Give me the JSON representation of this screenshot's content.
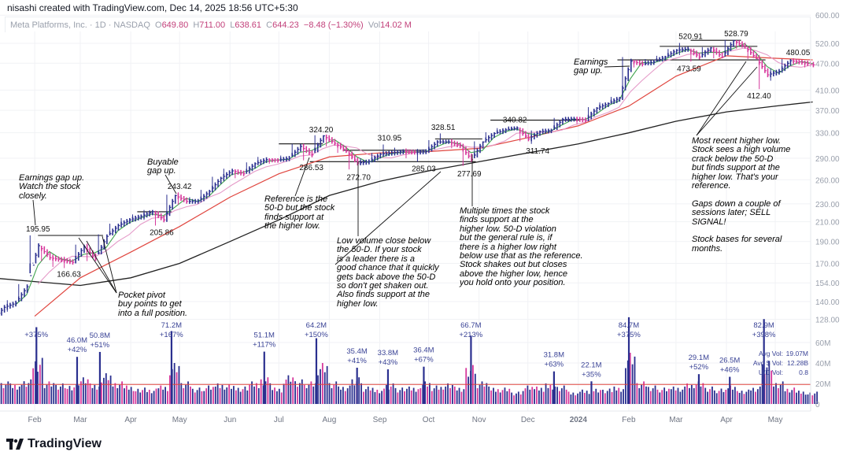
{
  "credit": "nisashi created with TradingView.com, Dec 14, 2025 18:56 UTC+5:30",
  "legend": {
    "symbol": "Meta Platforms, Inc. · 1D · NASDAQ",
    "o_label": "O",
    "o": "649.80",
    "h_label": "H",
    "h": "711.00",
    "l_label": "L",
    "l": "638.61",
    "c_label": "C",
    "c": "644.23",
    "change": "−8.48 (−1.30%)",
    "vol_label": "Vol",
    "vol": "14.02 M"
  },
  "stats": {
    "avg_vol_label": "Avg Vol:",
    "avg_vol": "19.07M",
    "avg_dollar_vol_label": "Avg $ Vol:",
    "avg_dollar_vol": "12.28B",
    "ud_label": "U/D Vol:",
    "ud": "0.8"
  },
  "logo": "TradingView",
  "colors": {
    "up": "#2a2f8f",
    "down": "#d6379b",
    "ma10": "#3fa34d",
    "ma21": "#e59ac8",
    "ma50": "#e0463f",
    "ma200": "#222222",
    "vol_ma": "#e0463f",
    "label": "#3a4396"
  },
  "chart_data": {
    "type": "ohlc",
    "y_scale": "log",
    "price_ticks": [
      "600.00",
      "520.00",
      "470.00",
      "410.00",
      "370.00",
      "330.00",
      "290.00",
      "260.00",
      "230.00",
      "210.00",
      "190.00",
      "170.00",
      "154.00",
      "140.00",
      "128.00"
    ],
    "volume_ticks": [
      "60M",
      "40M",
      "20M",
      "0"
    ],
    "time_ticks": [
      {
        "label": "Feb",
        "date": "2023-02-01"
      },
      {
        "label": "Mar",
        "date": "2023-03-01"
      },
      {
        "label": "Apr",
        "date": "2023-04-01"
      },
      {
        "label": "May",
        "date": "2023-05-01"
      },
      {
        "label": "Jun",
        "date": "2023-06-01"
      },
      {
        "label": "Jul",
        "date": "2023-07-01"
      },
      {
        "label": "Aug",
        "date": "2023-08-01"
      },
      {
        "label": "Sep",
        "date": "2023-09-01"
      },
      {
        "label": "Oct",
        "date": "2023-10-01"
      },
      {
        "label": "Nov",
        "date": "2023-11-01"
      },
      {
        "label": "Dec",
        "date": "2023-12-01"
      },
      {
        "label": "2024",
        "date": "2024-01-01"
      },
      {
        "label": "Feb",
        "date": "2024-02-01"
      },
      {
        "label": "Mar",
        "date": "2024-03-01"
      },
      {
        "label": "Apr",
        "date": "2024-04-01"
      },
      {
        "label": "May",
        "date": "2024-05-01"
      }
    ],
    "bars_columns": [
      "date",
      "low",
      "high",
      "close",
      "volume_M"
    ],
    "bars": [
      [
        "2023-01-13",
        128,
        138,
        136,
        22
      ],
      [
        "2023-01-20",
        133,
        141,
        139,
        20
      ],
      [
        "2023-01-27",
        140,
        153,
        151,
        24
      ],
      [
        "2023-02-03",
        170,
        196,
        186,
        45
      ],
      [
        "2023-02-10",
        172,
        186,
        175,
        22
      ],
      [
        "2023-02-17",
        167,
        178,
        173,
        20
      ],
      [
        "2023-02-24",
        166,
        176,
        171,
        19
      ],
      [
        "2023-03-03",
        170,
        187,
        185,
        26
      ],
      [
        "2023-03-10",
        172,
        188,
        174,
        20
      ],
      [
        "2023-03-17",
        178,
        197,
        195,
        30
      ],
      [
        "2023-03-24",
        196,
        208,
        206,
        22
      ],
      [
        "2023-03-31",
        204,
        214,
        212,
        18
      ],
      [
        "2023-04-07",
        210,
        218,
        216,
        16
      ],
      [
        "2023-04-14",
        212,
        223,
        221,
        15
      ],
      [
        "2023-04-21",
        206,
        222,
        212,
        18
      ],
      [
        "2023-04-28",
        210,
        241,
        240,
        40
      ],
      [
        "2023-05-05",
        229,
        244,
        233,
        22
      ],
      [
        "2023-05-12",
        230,
        238,
        233,
        16
      ],
      [
        "2023-05-19",
        232,
        247,
        245,
        18
      ],
      [
        "2023-05-26",
        244,
        264,
        262,
        20
      ],
      [
        "2023-06-02",
        258,
        275,
        272,
        19
      ],
      [
        "2023-06-09",
        262,
        274,
        268,
        17
      ],
      [
        "2023-06-16",
        268,
        284,
        282,
        22
      ],
      [
        "2023-06-23",
        280,
        292,
        288,
        26
      ],
      [
        "2023-06-30",
        282,
        290,
        287,
        16
      ],
      [
        "2023-07-07",
        285,
        294,
        290,
        28
      ],
      [
        "2023-07-14",
        292,
        312,
        308,
        24
      ],
      [
        "2023-07-21",
        287,
        312,
        295,
        22
      ],
      [
        "2023-07-28",
        298,
        326,
        325,
        40
      ],
      [
        "2023-08-04",
        308,
        327,
        313,
        22
      ],
      [
        "2023-08-11",
        298,
        314,
        301,
        18
      ],
      [
        "2023-08-18",
        274,
        302,
        283,
        26
      ],
      [
        "2023-08-25",
        280,
        290,
        285,
        17
      ],
      [
        "2023-09-01",
        284,
        298,
        296,
        15
      ],
      [
        "2023-09-08",
        292,
        311,
        298,
        20
      ],
      [
        "2023-09-15",
        294,
        306,
        300,
        16
      ],
      [
        "2023-09-22",
        290,
        305,
        299,
        17
      ],
      [
        "2023-09-29",
        285,
        304,
        300,
        22
      ],
      [
        "2023-10-06",
        298,
        318,
        315,
        18
      ],
      [
        "2023-10-13",
        312,
        329,
        315,
        20
      ],
      [
        "2023-10-20",
        305,
        320,
        309,
        17
      ],
      [
        "2023-10-27",
        279,
        312,
        288,
        38
      ],
      [
        "2023-11-03",
        290,
        316,
        315,
        22
      ],
      [
        "2023-11-10",
        314,
        331,
        329,
        17
      ],
      [
        "2023-11-17",
        328,
        338,
        335,
        16
      ],
      [
        "2023-11-24",
        334,
        341,
        338,
        12
      ],
      [
        "2023-12-01",
        316,
        339,
        320,
        18
      ],
      [
        "2023-12-08",
        312,
        334,
        332,
        17
      ],
      [
        "2023-12-15",
        328,
        337,
        334,
        20
      ],
      [
        "2023-12-22",
        335,
        356,
        353,
        18
      ],
      [
        "2023-12-29",
        349,
        358,
        354,
        12
      ],
      [
        "2024-01-05",
        345,
        358,
        352,
        14
      ],
      [
        "2024-01-12",
        350,
        376,
        374,
        16
      ],
      [
        "2024-01-19",
        370,
        385,
        383,
        15
      ],
      [
        "2024-01-26",
        382,
        396,
        394,
        17
      ],
      [
        "2024-02-02",
        390,
        485,
        475,
        50
      ],
      [
        "2024-02-09",
        460,
        478,
        468,
        22
      ],
      [
        "2024-02-16",
        465,
        480,
        473,
        18
      ],
      [
        "2024-02-23",
        474,
        488,
        485,
        16
      ],
      [
        "2024-03-01",
        484,
        505,
        502,
        17
      ],
      [
        "2024-03-08",
        490,
        521,
        505,
        20
      ],
      [
        "2024-03-15",
        474,
        506,
        485,
        22
      ],
      [
        "2024-03-22",
        484,
        510,
        508,
        17
      ],
      [
        "2024-03-29",
        482,
        510,
        485,
        15
      ],
      [
        "2024-04-05",
        486,
        529,
        527,
        18
      ],
      [
        "2024-04-12",
        506,
        528,
        511,
        14
      ],
      [
        "2024-04-19",
        480,
        512,
        481,
        17
      ],
      [
        "2024-04-26",
        412,
        490,
        443,
        42
      ],
      [
        "2024-05-03",
        430,
        458,
        451,
        22
      ],
      [
        "2024-05-10",
        448,
        480,
        476,
        16
      ],
      [
        "2024-05-17",
        466,
        482,
        472,
        13
      ],
      [
        "2024-05-24",
        460,
        476,
        466,
        12
      ]
    ],
    "ma50": [
      [
        "2023-02-01",
        130
      ],
      [
        "2023-03-01",
        158
      ],
      [
        "2023-04-01",
        180
      ],
      [
        "2023-05-01",
        205
      ],
      [
        "2023-06-01",
        238
      ],
      [
        "2023-07-01",
        268
      ],
      [
        "2023-08-01",
        292
      ],
      [
        "2023-09-01",
        298
      ],
      [
        "2023-10-01",
        300
      ],
      [
        "2023-11-01",
        305
      ],
      [
        "2023-12-01",
        322
      ],
      [
        "2024-01-01",
        342
      ],
      [
        "2024-02-01",
        378
      ],
      [
        "2024-03-01",
        440
      ],
      [
        "2024-04-01",
        488
      ],
      [
        "2024-05-01",
        482
      ],
      [
        "2024-05-24",
        478
      ]
    ],
    "ma200": [
      [
        "2023-01-05",
        158
      ],
      [
        "2023-02-01",
        155
      ],
      [
        "2023-03-01",
        152
      ],
      [
        "2023-04-01",
        158
      ],
      [
        "2023-05-01",
        170
      ],
      [
        "2023-06-01",
        190
      ],
      [
        "2023-07-01",
        212
      ],
      [
        "2023-08-01",
        240
      ],
      [
        "2023-09-01",
        258
      ],
      [
        "2023-10-01",
        272
      ],
      [
        "2023-11-01",
        285
      ],
      [
        "2023-12-01",
        298
      ],
      [
        "2024-01-01",
        312
      ],
      [
        "2024-02-01",
        330
      ],
      [
        "2024-03-01",
        350
      ],
      [
        "2024-04-01",
        367
      ],
      [
        "2024-05-01",
        378
      ],
      [
        "2024-05-24",
        386
      ]
    ],
    "volume_ma_M": 19,
    "reference_lines": [
      [
        "2023-02-03",
        "2023-03-15",
        195.95
      ],
      [
        "2023-04-05",
        "2023-04-26",
        221
      ],
      [
        "2023-07-01",
        "2023-07-28",
        312
      ],
      [
        "2023-07-20",
        "2023-10-30",
        285
      ],
      [
        "2023-08-10",
        "2023-09-29",
        302
      ],
      [
        "2023-10-05",
        "2023-11-03",
        320
      ],
      [
        "2023-11-08",
        "2024-01-02",
        352
      ],
      [
        "2024-01-25",
        "2024-04-25",
        478
      ],
      [
        "2024-02-20",
        "2024-04-20",
        512
      ],
      [
        "2024-03-10",
        "2024-04-10",
        528
      ]
    ],
    "price_labels": [
      {
        "date": "2023-02-03",
        "value": "195.95",
        "pos": "above"
      },
      {
        "date": "2023-02-22",
        "value": "166.63",
        "pos": "below"
      },
      {
        "date": "2023-05-01",
        "value": "243.42",
        "pos": "above"
      },
      {
        "date": "2023-04-20",
        "value": "205.86",
        "pos": "below"
      },
      {
        "date": "2023-07-27",
        "value": "324.20",
        "pos": "above"
      },
      {
        "date": "2023-07-21",
        "value": "286.53",
        "pos": "below"
      },
      {
        "date": "2023-08-19",
        "value": "272.70",
        "pos": "below"
      },
      {
        "date": "2023-09-07",
        "value": "310.95",
        "pos": "above"
      },
      {
        "date": "2023-09-28",
        "value": "285.03",
        "pos": "below"
      },
      {
        "date": "2023-10-10",
        "value": "328.51",
        "pos": "above"
      },
      {
        "date": "2023-10-26",
        "value": "277.69",
        "pos": "below"
      },
      {
        "date": "2023-11-23",
        "value": "340.82",
        "pos": "above"
      },
      {
        "date": "2023-12-07",
        "value": "311.74",
        "pos": "below"
      },
      {
        "date": "2024-03-09",
        "value": "473.59",
        "pos": "below"
      },
      {
        "date": "2024-03-10",
        "value": "520.91",
        "pos": "above"
      },
      {
        "date": "2024-04-07",
        "value": "528.79",
        "pos": "above"
      },
      {
        "date": "2024-04-21",
        "value": "412.40",
        "pos": "below"
      },
      {
        "date": "2024-05-15",
        "value": "480.05",
        "pos": "above"
      }
    ],
    "volume_labels": [
      {
        "date": "2023-02-02",
        "vol": "",
        "pct": "+375%",
        "v": 75
      },
      {
        "date": "2023-02-27",
        "vol": "46.0M",
        "pct": "+42%",
        "v": 46
      },
      {
        "date": "2023-03-13",
        "vol": "50.8M",
        "pct": "+51%",
        "v": 50.8
      },
      {
        "date": "2023-04-26",
        "vol": "71.2M",
        "pct": "+167%",
        "v": 71.2
      },
      {
        "date": "2023-06-22",
        "vol": "51.1M",
        "pct": "+117%",
        "v": 51.1
      },
      {
        "date": "2023-07-24",
        "vol": "64.2M",
        "pct": "+150%",
        "v": 64.2
      },
      {
        "date": "2023-08-18",
        "vol": "35.4M",
        "pct": "+41%",
        "v": 35.4
      },
      {
        "date": "2023-09-06",
        "vol": "33.8M",
        "pct": "+43%",
        "v": 33.8
      },
      {
        "date": "2023-09-28",
        "vol": "36.4M",
        "pct": "+67%",
        "v": 36.4
      },
      {
        "date": "2023-10-27",
        "vol": "66.7M",
        "pct": "+213%",
        "v": 66.7
      },
      {
        "date": "2023-12-17",
        "vol": "31.8M",
        "pct": "+63%",
        "v": 31.8
      },
      {
        "date": "2024-01-09",
        "vol": "22.1M",
        "pct": "+35%",
        "v": 22.1
      },
      {
        "date": "2024-02-01",
        "vol": "84.7M",
        "pct": "+375%",
        "v": 84.7
      },
      {
        "date": "2024-03-15",
        "vol": "29.1M",
        "pct": "+52%",
        "v": 29.1
      },
      {
        "date": "2024-04-03",
        "vol": "26.5M",
        "pct": "+46%",
        "v": 26.5
      },
      {
        "date": "2024-04-24",
        "vol": "82.9M",
        "pct": "+398%",
        "v": 82.9
      }
    ]
  },
  "annotations": {
    "earnings_2023": "Earnings gap up.\nWatch the stock\nclosely.",
    "buyable": "Buyable\ngap up.",
    "pocket_pivot": "Pocket pivot\nbuy points to get\ninto a full position.",
    "reference": "Reference is the\n50-D but the stock\nfinds support at\nthe higher low.",
    "low_volume": "Low volume close below\nthe 50-D. If your stock\nis a leader there is a\ngood chance that it quickly\ngets back above the 50-D\nso don't get shaken out.\nAlso finds support at the\nhigher low.",
    "multiple": "Multiple times the stock\nfinds support at the\nhigher low. 50-D violation\nbut the general rule is, if\nthere is a higher low right\nbelow use that as the reference.\nStock shakes out but closes\nabove the higher low, hence\nyou hold onto your position.",
    "earnings_2024": "Earnings\ngap up.",
    "recent": "Most recent higher low.\nStock sees a high volume\ncrack below the 50-D\nbut finds support at the\nhigher low. That's your\nreference.\n\nGaps down a couple of\nsessions later; SELL\nSIGNAL!\n\nStock bases for several\nmonths."
  }
}
